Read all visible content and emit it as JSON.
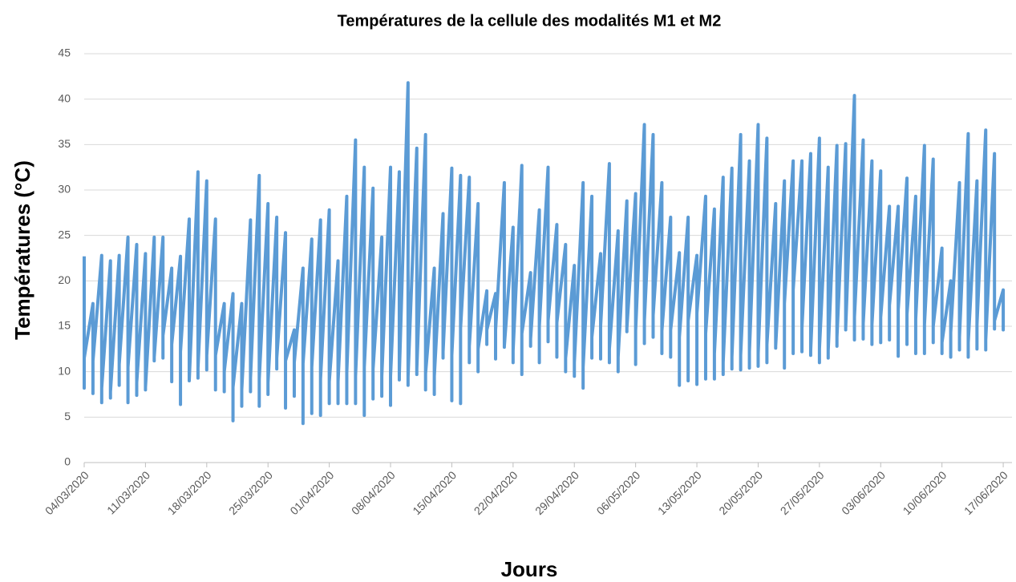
{
  "chart_data": {
    "type": "line",
    "title": "Températures de la cellule des modalités M1 et M2",
    "xlabel": "Jours",
    "ylabel": "Températures (°C)",
    "ylim": [
      0,
      45
    ],
    "yticks": [
      0,
      5,
      10,
      15,
      20,
      25,
      30,
      35,
      40,
      45
    ],
    "grid": true,
    "xlim": [
      "04/03/2020",
      "18/06/2020"
    ],
    "xticks": [
      "04/03/2020",
      "11/03/2020",
      "18/03/2020",
      "25/03/2020",
      "01/04/2020",
      "08/04/2020",
      "15/04/2020",
      "22/04/2020",
      "29/04/2020",
      "06/05/2020",
      "13/05/2020",
      "20/05/2020",
      "27/05/2020",
      "03/06/2020",
      "10/06/2020",
      "17/06/2020"
    ],
    "color": "#5b9bd5",
    "x": [
      "04/03/2020",
      "04/03/2020",
      "04/03/2020",
      "05/03/2020",
      "05/03/2020",
      "05/03/2020",
      "06/03/2020",
      "06/03/2020",
      "06/03/2020",
      "07/03/2020",
      "07/03/2020",
      "07/03/2020",
      "08/03/2020",
      "08/03/2020",
      "08/03/2020",
      "09/03/2020",
      "09/03/2020",
      "09/03/2020",
      "10/03/2020",
      "10/03/2020",
      "10/03/2020",
      "11/03/2020",
      "11/03/2020",
      "11/03/2020",
      "12/03/2020",
      "12/03/2020",
      "12/03/2020",
      "13/03/2020",
      "13/03/2020",
      "13/03/2020",
      "14/03/2020",
      "14/03/2020",
      "14/03/2020",
      "15/03/2020",
      "15/03/2020",
      "15/03/2020",
      "16/03/2020",
      "16/03/2020",
      "16/03/2020",
      "17/03/2020",
      "17/03/2020",
      "17/03/2020",
      "18/03/2020",
      "18/03/2020",
      "18/03/2020",
      "19/03/2020",
      "19/03/2020",
      "19/03/2020",
      "20/03/2020",
      "20/03/2020",
      "20/03/2020",
      "21/03/2020",
      "21/03/2020",
      "21/03/2020",
      "22/03/2020",
      "22/03/2020",
      "22/03/2020",
      "23/03/2020",
      "23/03/2020",
      "23/03/2020",
      "24/03/2020",
      "24/03/2020",
      "24/03/2020",
      "25/03/2020",
      "25/03/2020",
      "25/03/2020",
      "26/03/2020",
      "26/03/2020",
      "26/03/2020",
      "27/03/2020",
      "27/03/2020",
      "27/03/2020",
      "28/03/2020",
      "28/03/2020",
      "28/03/2020",
      "29/03/2020",
      "29/03/2020",
      "29/03/2020",
      "30/03/2020",
      "30/03/2020",
      "30/03/2020",
      "31/03/2020",
      "31/03/2020",
      "31/03/2020",
      "01/04/2020",
      "01/04/2020",
      "01/04/2020",
      "02/04/2020",
      "02/04/2020",
      "02/04/2020",
      "03/04/2020",
      "03/04/2020",
      "03/04/2020",
      "04/04/2020",
      "04/04/2020",
      "04/04/2020",
      "05/04/2020",
      "05/04/2020",
      "05/04/2020",
      "06/04/2020",
      "06/04/2020",
      "06/04/2020",
      "07/04/2020",
      "07/04/2020",
      "07/04/2020",
      "08/04/2020",
      "08/04/2020",
      "08/04/2020",
      "09/04/2020",
      "09/04/2020",
      "09/04/2020",
      "10/04/2020",
      "10/04/2020",
      "10/04/2020",
      "11/04/2020",
      "11/04/2020",
      "11/04/2020",
      "12/04/2020",
      "12/04/2020",
      "12/04/2020",
      "13/04/2020",
      "13/04/2020",
      "13/04/2020",
      "14/04/2020",
      "14/04/2020",
      "14/04/2020",
      "15/04/2020",
      "15/04/2020",
      "15/04/2020",
      "16/04/2020",
      "16/04/2020",
      "16/04/2020",
      "17/04/2020",
      "17/04/2020",
      "17/04/2020",
      "18/04/2020",
      "18/04/2020",
      "18/04/2020",
      "19/04/2020",
      "19/04/2020",
      "19/04/2020",
      "20/04/2020",
      "20/04/2020",
      "20/04/2020",
      "21/04/2020",
      "21/04/2020",
      "21/04/2020",
      "22/04/2020",
      "22/04/2020",
      "22/04/2020",
      "23/04/2020",
      "23/04/2020",
      "23/04/2020",
      "24/04/2020",
      "24/04/2020",
      "24/04/2020",
      "25/04/2020",
      "25/04/2020",
      "25/04/2020",
      "26/04/2020",
      "26/04/2020",
      "26/04/2020",
      "27/04/2020",
      "27/04/2020",
      "27/04/2020",
      "28/04/2020",
      "28/04/2020",
      "28/04/2020",
      "29/04/2020",
      "29/04/2020",
      "29/04/2020",
      "30/04/2020",
      "30/04/2020",
      "30/04/2020",
      "01/05/2020",
      "01/05/2020",
      "01/05/2020",
      "02/05/2020",
      "02/05/2020",
      "02/05/2020",
      "03/05/2020",
      "03/05/2020",
      "03/05/2020",
      "04/05/2020",
      "04/05/2020",
      "04/05/2020",
      "05/05/2020",
      "05/05/2020",
      "05/05/2020",
      "06/05/2020",
      "06/05/2020",
      "06/05/2020",
      "07/05/2020",
      "07/05/2020",
      "07/05/2020",
      "08/05/2020",
      "08/05/2020",
      "08/05/2020",
      "09/05/2020",
      "09/05/2020",
      "09/05/2020",
      "10/05/2020",
      "10/05/2020",
      "10/05/2020",
      "11/05/2020",
      "11/05/2020",
      "11/05/2020",
      "12/05/2020",
      "12/05/2020",
      "12/05/2020",
      "13/05/2020",
      "13/05/2020",
      "13/05/2020",
      "14/05/2020",
      "14/05/2020",
      "14/05/2020",
      "15/05/2020",
      "15/05/2020",
      "15/05/2020",
      "16/05/2020",
      "16/05/2020",
      "16/05/2020",
      "17/05/2020",
      "17/05/2020",
      "17/05/2020",
      "18/05/2020",
      "18/05/2020",
      "18/05/2020",
      "19/05/2020",
      "19/05/2020",
      "19/05/2020",
      "20/05/2020",
      "20/05/2020",
      "20/05/2020",
      "21/05/2020",
      "21/05/2020",
      "21/05/2020",
      "22/05/2020",
      "22/05/2020",
      "22/05/2020",
      "23/05/2020",
      "23/05/2020",
      "23/05/2020",
      "24/05/2020",
      "24/05/2020",
      "24/05/2020",
      "25/05/2020",
      "25/05/2020",
      "25/05/2020",
      "26/05/2020",
      "26/05/2020",
      "26/05/2020",
      "27/05/2020",
      "27/05/2020",
      "27/05/2020",
      "28/05/2020",
      "28/05/2020",
      "28/05/2020",
      "29/05/2020",
      "29/05/2020",
      "29/05/2020",
      "30/05/2020",
      "30/05/2020",
      "30/05/2020",
      "31/05/2020",
      "31/05/2020",
      "31/05/2020",
      "01/06/2020",
      "01/06/2020",
      "01/06/2020",
      "02/06/2020",
      "02/06/2020",
      "02/06/2020",
      "03/06/2020",
      "03/06/2020",
      "03/06/2020",
      "04/06/2020",
      "04/06/2020",
      "04/06/2020",
      "05/06/2020",
      "05/06/2020",
      "05/06/2020",
      "06/06/2020",
      "06/06/2020",
      "06/06/2020",
      "07/06/2020",
      "07/06/2020",
      "07/06/2020",
      "08/06/2020",
      "08/06/2020",
      "08/06/2020",
      "09/06/2020",
      "09/06/2020",
      "09/06/2020",
      "10/06/2020",
      "10/06/2020",
      "10/06/2020",
      "11/06/2020",
      "11/06/2020",
      "11/06/2020",
      "12/06/2020",
      "12/06/2020",
      "12/06/2020",
      "13/06/2020",
      "13/06/2020",
      "13/06/2020",
      "14/06/2020",
      "14/06/2020",
      "14/06/2020",
      "15/06/2020",
      "15/06/2020",
      "15/06/2020",
      "16/06/2020",
      "16/06/2020",
      "16/06/2020",
      "17/06/2020",
      "17/06/2020",
      "17/06/2020"
    ],
    "values": [
      22.7,
      8.2,
      11.5,
      17.5,
      7.6,
      11.2,
      22.8,
      6.6,
      8.2,
      22.2,
      7.1,
      7.8,
      22.8,
      8.5,
      10.8,
      24.8,
      6.6,
      10.5,
      24,
      7.4,
      8.8,
      23,
      8,
      8.3,
      24.8,
      11.2,
      11.6,
      24.8,
      11.5,
      14,
      21.4,
      8.9,
      13,
      22.7,
      6.4,
      12.2,
      26.8,
      9.2,
      9,
      32,
      9.3,
      10.4,
      31,
      10.2,
      11.8,
      26.8,
      8,
      11.8,
      17.5,
      7.8,
      10,
      18.6,
      4.6,
      8.3,
      17.5,
      6.2,
      8,
      26.7,
      7.8,
      9.3,
      31.6,
      6.2,
      9.2,
      28.5,
      7.5,
      8.8,
      27,
      10.3,
      11.5,
      25.3,
      6,
      11.2,
      14.6,
      7.3,
      11,
      21.4,
      4.3,
      10.9,
      24.6,
      5.4,
      10.5,
      26.7,
      5.2,
      9.2,
      27.8,
      6.5,
      8.9,
      22.2,
      6.5,
      8.9,
      29.3,
      6.5,
      9.9,
      35.5,
      6.5,
      9.5,
      32.5,
      5.2,
      10.5,
      30.2,
      7,
      10.3,
      24.8,
      7.3,
      9.5,
      32.5,
      6.3,
      9.5,
      32,
      9.1,
      9.6,
      41.8,
      8.5,
      9.4,
      34.6,
      9.7,
      10.3,
      36.1,
      8,
      9.8,
      21.4,
      7.5,
      9.5,
      27.4,
      11.5,
      12.2,
      32.4,
      6.8,
      11.8,
      31.6,
      6.5,
      14.8,
      31.4,
      11,
      12.8,
      28.5,
      10,
      12.5,
      18.9,
      13,
      14.6,
      18.6,
      11.4,
      14.6,
      30.8,
      12.7,
      12.8,
      25.9,
      11,
      12.3,
      32.7,
      9.7,
      14.2,
      20.9,
      12.8,
      13.6,
      27.8,
      11,
      15,
      32.5,
      13.3,
      15.6,
      26.2,
      11.6,
      15.4,
      24,
      10,
      11.5,
      21.7,
      9.5,
      11,
      30.8,
      8.2,
      10.5,
      29.3,
      11.5,
      13.8,
      23,
      11.4,
      15,
      32.9,
      11,
      12.5,
      25.5,
      10,
      11.6,
      28.8,
      14.4,
      14.8,
      29.6,
      10.8,
      14.5,
      37.2,
      13.1,
      15.6,
      36.1,
      13.8,
      16.2,
      30.8,
      12,
      14.5,
      27,
      11.6,
      14.6,
      23.1,
      8.5,
      13.8,
      27,
      9,
      15.6,
      22.8,
      8.6,
      16.4,
      29.3,
      9.2,
      14.2,
      27.9,
      9.2,
      12,
      31.4,
      9.7,
      11,
      32.4,
      10.3,
      11.6,
      36.1,
      10.2,
      11.8,
      33.2,
      10.4,
      12.2,
      37.2,
      10.6,
      12,
      35.7,
      11,
      13,
      28.5,
      12.6,
      12.8,
      31,
      10.4,
      17.5,
      33.2,
      12,
      19,
      33.2,
      12.2,
      14.8,
      34,
      11.8,
      12.3,
      35.7,
      11,
      12.5,
      32.5,
      11.5,
      12.3,
      34.9,
      12.8,
      13.8,
      35.1,
      14.6,
      14.8,
      40.4,
      13.5,
      16,
      35.5,
      13.6,
      15.3,
      33.2,
      13,
      15.2,
      32.1,
      13.2,
      16,
      28.2,
      13.5,
      17.3,
      28.2,
      11.7,
      16.8,
      31.3,
      13,
      16.3,
      29.3,
      12,
      15.8,
      34.9,
      12,
      15.2,
      33.4,
      13.2,
      15,
      23.6,
      12,
      13.2,
      20,
      11.6,
      14.3,
      30.8,
      12.4,
      13.8,
      36.2,
      11.6,
      13.2,
      31,
      12.5,
      15.2,
      36.6,
      12.4,
      13.5,
      34,
      14.7,
      15.6,
      19,
      14.6,
      16
    ]
  }
}
